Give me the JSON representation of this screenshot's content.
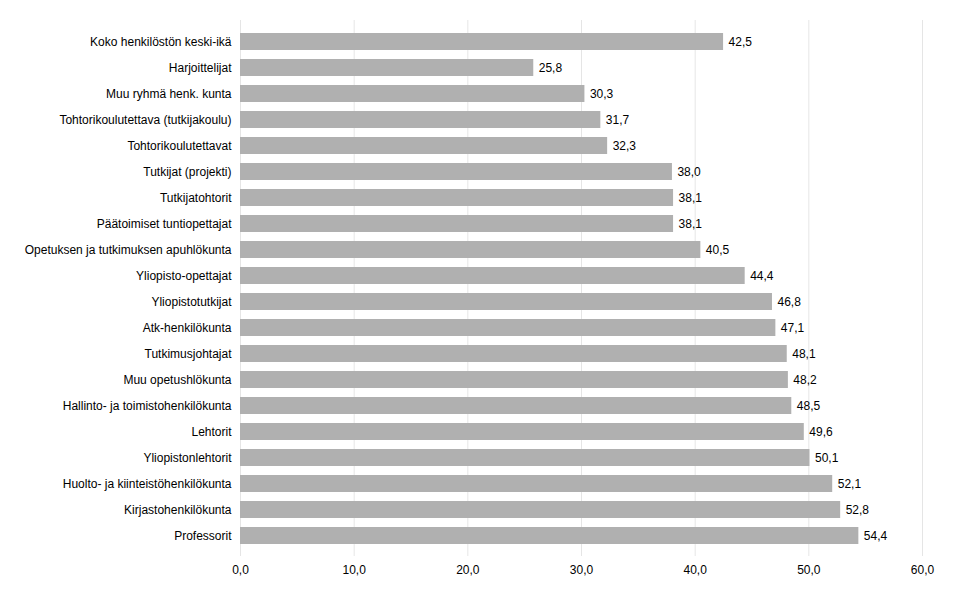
{
  "chart_data": {
    "type": "bar",
    "orientation": "horizontal",
    "categories": [
      "Professorit",
      "Kirjastohenkilökunta",
      "Huolto- ja kiinteistöhenkilökunta",
      "Yliopistonlehtorit",
      "Lehtorit",
      "Hallinto- ja toimistohenkilökunta",
      "Muu opetushlökunta",
      "Tutkimusjohtajat",
      "Atk-henkilökunta",
      "Yliopistotutkijat",
      "Yliopisto-opettajat",
      "Opetuksen ja tutkimuksen apuhlökunta",
      "Päätoimiset tuntiopettajat",
      "Tutkijatohtorit",
      "Tutkijat (projekti)",
      "Tohtorikoulutettavat",
      "Tohtorikoulutettava (tutkijakoulu)",
      "Muu ryhmä henk. kunta",
      "Harjoittelijat",
      "Koko henkilöstön keski-ikä"
    ],
    "values": [
      54.4,
      52.8,
      52.1,
      50.1,
      49.6,
      48.5,
      48.2,
      48.1,
      47.1,
      46.8,
      44.4,
      40.5,
      38.1,
      38.1,
      38.0,
      32.3,
      31.7,
      30.3,
      25.8,
      42.5
    ],
    "value_labels": [
      "54,4",
      "52,8",
      "52,1",
      "50,1",
      "49,6",
      "48,5",
      "48,2",
      "48,1",
      "47,1",
      "46,8",
      "44,4",
      "40,5",
      "38,1",
      "38,1",
      "38,0",
      "32,3",
      "31,7",
      "30,3",
      "25,8",
      "42,5"
    ],
    "data_labels": true,
    "color": "#b0b0b0",
    "xlim": [
      0,
      60
    ],
    "xticks": [
      {
        "value": 0,
        "label": "0,0"
      },
      {
        "value": 10,
        "label": "10,0"
      },
      {
        "value": 20,
        "label": "20,0"
      },
      {
        "value": 30,
        "label": "30,0"
      },
      {
        "value": 40,
        "label": "40,0"
      },
      {
        "value": 50,
        "label": "50,0"
      },
      {
        "value": 60,
        "label": "60,0"
      }
    ],
    "grid": true
  }
}
